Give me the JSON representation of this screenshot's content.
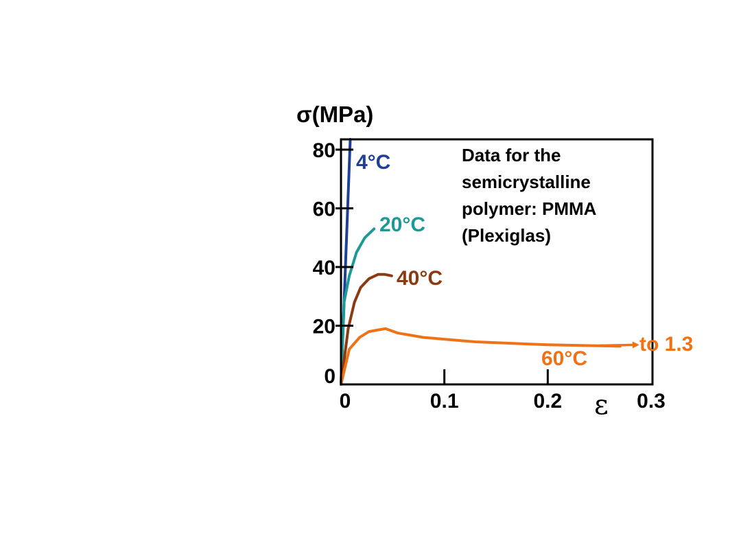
{
  "chart_data": {
    "type": "line",
    "ylabel": "σ(MPa)",
    "xlabel": "ε",
    "xlim": [
      0,
      0.3
    ],
    "ylim": [
      0,
      80
    ],
    "x_ticks": [
      "0",
      "0.1",
      "0.2",
      "0.3"
    ],
    "x_tick_values": [
      0,
      0.1,
      0.2,
      0.3
    ],
    "y_ticks": [
      "0",
      "20",
      "40",
      "60",
      "80"
    ],
    "y_tick_values": [
      0,
      20,
      40,
      60,
      80
    ],
    "grid": false,
    "annotation": [
      "Data for the",
      "semicrystalline",
      "polymer: PMMA",
      "(Plexiglas)"
    ],
    "arrow_label": "to 1.3",
    "series": [
      {
        "name": "4°C",
        "color": "#1f3f99",
        "x": [
          0,
          0.009
        ],
        "y": [
          0,
          84
        ]
      },
      {
        "name": "20°C",
        "color": "#1e9a96",
        "x": [
          0,
          0.003,
          0.008,
          0.015,
          0.023,
          0.032
        ],
        "y": [
          0,
          28,
          37,
          45,
          50,
          53
        ]
      },
      {
        "name": "40°C",
        "color": "#8b3a12",
        "x": [
          0,
          0.007,
          0.013,
          0.019,
          0.027,
          0.036,
          0.042,
          0.049
        ],
        "y": [
          0,
          19,
          28,
          33,
          36,
          37.5,
          37.5,
          37
        ]
      },
      {
        "name": "60°C",
        "color": "#ef7316",
        "x": [
          0,
          0.008,
          0.018,
          0.027,
          0.035,
          0.043,
          0.055,
          0.08,
          0.13,
          0.2,
          0.27
        ],
        "y": [
          0,
          12,
          16,
          18,
          18.5,
          19,
          17.5,
          16,
          14.5,
          13.5,
          13
        ]
      }
    ]
  }
}
